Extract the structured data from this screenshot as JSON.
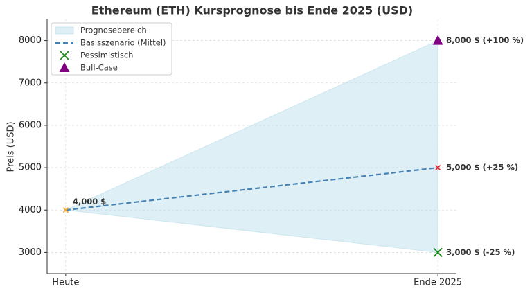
{
  "chart_data": {
    "type": "forecast",
    "title": "Ethereum (ETH) Kursprognose bis Ende 2025 (USD)",
    "y_label": "Preis (USD)",
    "categories": [
      "Heute",
      "Ende 2025"
    ],
    "ylim": [
      2500,
      8500
    ],
    "yticks": [
      3000,
      4000,
      5000,
      6000,
      7000,
      8000
    ],
    "grid": true,
    "legend": "upper left",
    "series": [
      {
        "name": "Prognosebereich",
        "kind": "area",
        "color": "#add8e6",
        "values": [
          4000,
          8000
        ],
        "lower": [
          4000,
          3000
        ]
      },
      {
        "name": "Basisszenario (Mittel)",
        "kind": "line",
        "color": "#4682b4",
        "values": [
          4000,
          5000
        ]
      },
      {
        "name": "Pessimistisch",
        "kind": "x",
        "color": "#1a8a1a",
        "values": [
          null,
          3000
        ],
        "value_labels": [
          null,
          "3,000 $ (-25 %)"
        ]
      },
      {
        "name": "Bull-Case",
        "kind": "triangle",
        "color": "#800080",
        "values": [
          null,
          8000
        ],
        "value_labels": [
          null,
          "8,000 $ (+100 %)"
        ]
      },
      {
        "kind": "small-x",
        "color": "#f5a623",
        "values": [
          4000,
          null
        ],
        "value_labels": [
          "4,000 $",
          null
        ]
      },
      {
        "kind": "small-x",
        "color": "#e8202a",
        "values": [
          null,
          5000
        ],
        "value_labels": [
          null,
          "5,000 $ (+25 %)"
        ]
      }
    ]
  }
}
